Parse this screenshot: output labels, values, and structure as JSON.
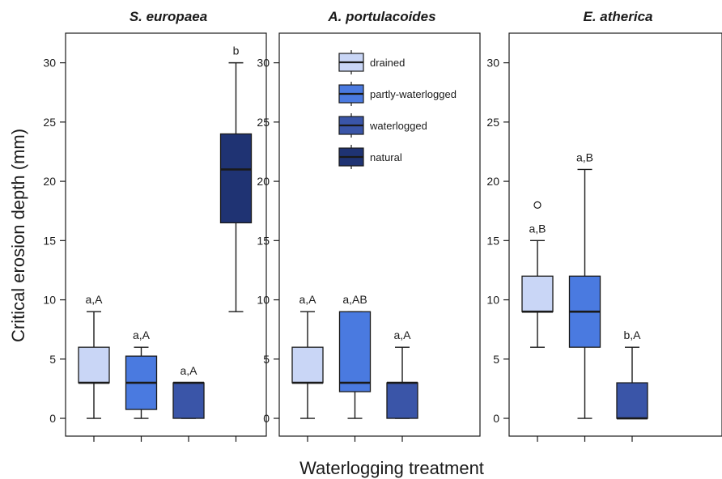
{
  "chart_data": {
    "type": "box",
    "xlabel": "Waterlogging treatment",
    "ylabel": "Critical erosion depth (mm)",
    "ylim": [
      -1.5,
      32.5
    ],
    "yticks": [
      0,
      5,
      10,
      15,
      20,
      25,
      30
    ],
    "grid": false,
    "legend": {
      "placement": "top, middle panel",
      "entries": [
        {
          "label": "drained",
          "color": "#c9d6f6"
        },
        {
          "label": "partly-waterlogged",
          "color": "#4a7ae0"
        },
        {
          "label": "waterlogged",
          "color": "#3a55a8"
        },
        {
          "label": "natural",
          "color": "#1f3373"
        }
      ]
    },
    "panels": [
      {
        "title": "S. europaea",
        "boxes": [
          {
            "treatment": "drained",
            "color": "#c9d6f6",
            "whisker_low": 0,
            "q1": 3,
            "median": 3,
            "q3": 6,
            "whisker_high": 9,
            "outliers": [],
            "label": "a,A"
          },
          {
            "treatment": "partly-waterlogged",
            "color": "#4a7ae0",
            "whisker_low": 0,
            "q1": 0.75,
            "median": 3,
            "q3": 5.25,
            "whisker_high": 6,
            "outliers": [],
            "label": "a,A"
          },
          {
            "treatment": "waterlogged",
            "color": "#3a55a8",
            "whisker_low": 0,
            "q1": 0,
            "median": 3,
            "q3": 3,
            "whisker_high": 3,
            "outliers": [],
            "label": "a,A"
          },
          {
            "treatment": "natural",
            "color": "#1f3373",
            "whisker_low": 9,
            "q1": 16.5,
            "median": 21,
            "q3": 24,
            "whisker_high": 30,
            "outliers": [],
            "label": "b"
          }
        ]
      },
      {
        "title": "A. portulacoides",
        "boxes": [
          {
            "treatment": "drained",
            "color": "#c9d6f6",
            "whisker_low": 0,
            "q1": 3,
            "median": 3,
            "q3": 6,
            "whisker_high": 9,
            "outliers": [],
            "label": "a,A"
          },
          {
            "treatment": "partly-waterlogged",
            "color": "#4a7ae0",
            "whisker_low": 0,
            "q1": 2.25,
            "median": 3,
            "q3": 9,
            "whisker_high": 9,
            "outliers": [],
            "label": "a,AB"
          },
          {
            "treatment": "waterlogged",
            "color": "#3a55a8",
            "whisker_low": 0,
            "q1": 0,
            "median": 3,
            "q3": 3,
            "whisker_high": 6,
            "outliers": [],
            "label": "a,A"
          }
        ]
      },
      {
        "title": "E. atherica",
        "boxes": [
          {
            "treatment": "drained",
            "color": "#c9d6f6",
            "whisker_low": 6,
            "q1": 9,
            "median": 9,
            "q3": 12,
            "whisker_high": 15,
            "outliers": [
              18
            ],
            "label": "a,B"
          },
          {
            "treatment": "partly-waterlogged",
            "color": "#4a7ae0",
            "whisker_low": 0,
            "q1": 6,
            "median": 9,
            "q3": 12,
            "whisker_high": 21,
            "outliers": [],
            "label": "a,B"
          },
          {
            "treatment": "waterlogged",
            "color": "#3a55a8",
            "whisker_low": 0,
            "q1": 0,
            "median": 0,
            "q3": 3,
            "whisker_high": 6,
            "outliers": [],
            "label": "b,A"
          }
        ]
      }
    ]
  }
}
